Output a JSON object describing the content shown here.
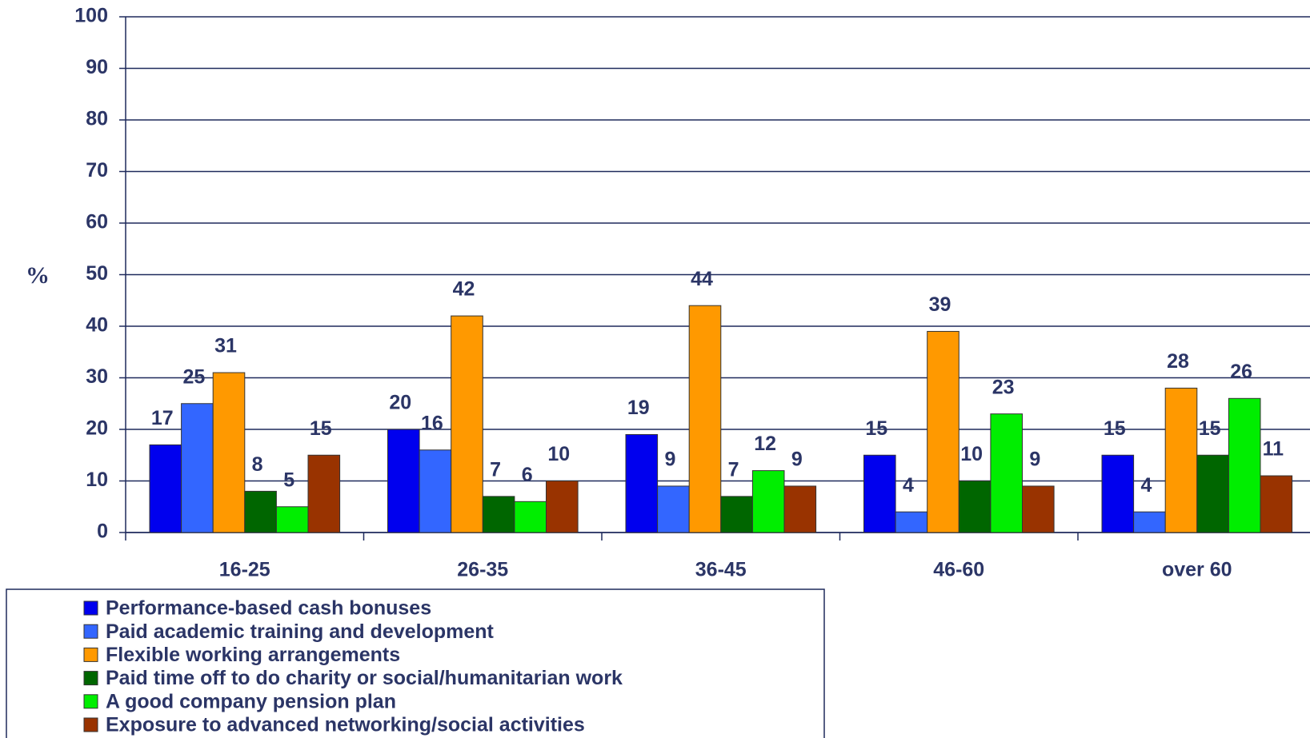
{
  "chart_data": {
    "type": "bar",
    "y_label": "%",
    "categories": [
      "16-25",
      "26-35",
      "36-45",
      "46-60",
      "over 60"
    ],
    "series": [
      {
        "name": "Performance-based cash bonuses",
        "color": "#0000ee",
        "values": [
          17,
          20,
          19,
          15,
          15
        ]
      },
      {
        "name": "Paid academic training and development",
        "color": "#3366ff",
        "values": [
          25,
          16,
          9,
          4,
          4
        ]
      },
      {
        "name": "Flexible working arrangements",
        "color": "#ff9900",
        "values": [
          31,
          42,
          44,
          39,
          28
        ]
      },
      {
        "name": "Paid time off to do charity or social/humanitarian work",
        "color": "#006600",
        "values": [
          8,
          7,
          7,
          10,
          15
        ]
      },
      {
        "name": "A good company pension plan",
        "color": "#00ee00",
        "values": [
          5,
          6,
          12,
          23,
          26
        ]
      },
      {
        "name": "Exposure to advanced networking/social activities",
        "color": "#993300",
        "values": [
          15,
          10,
          9,
          9,
          11
        ]
      }
    ],
    "ylim": [
      0,
      100
    ],
    "yticks": [
      0,
      10,
      20,
      30,
      40,
      50,
      60,
      70,
      80,
      90,
      100
    ],
    "grid": true,
    "legend": "bottom-left"
  }
}
